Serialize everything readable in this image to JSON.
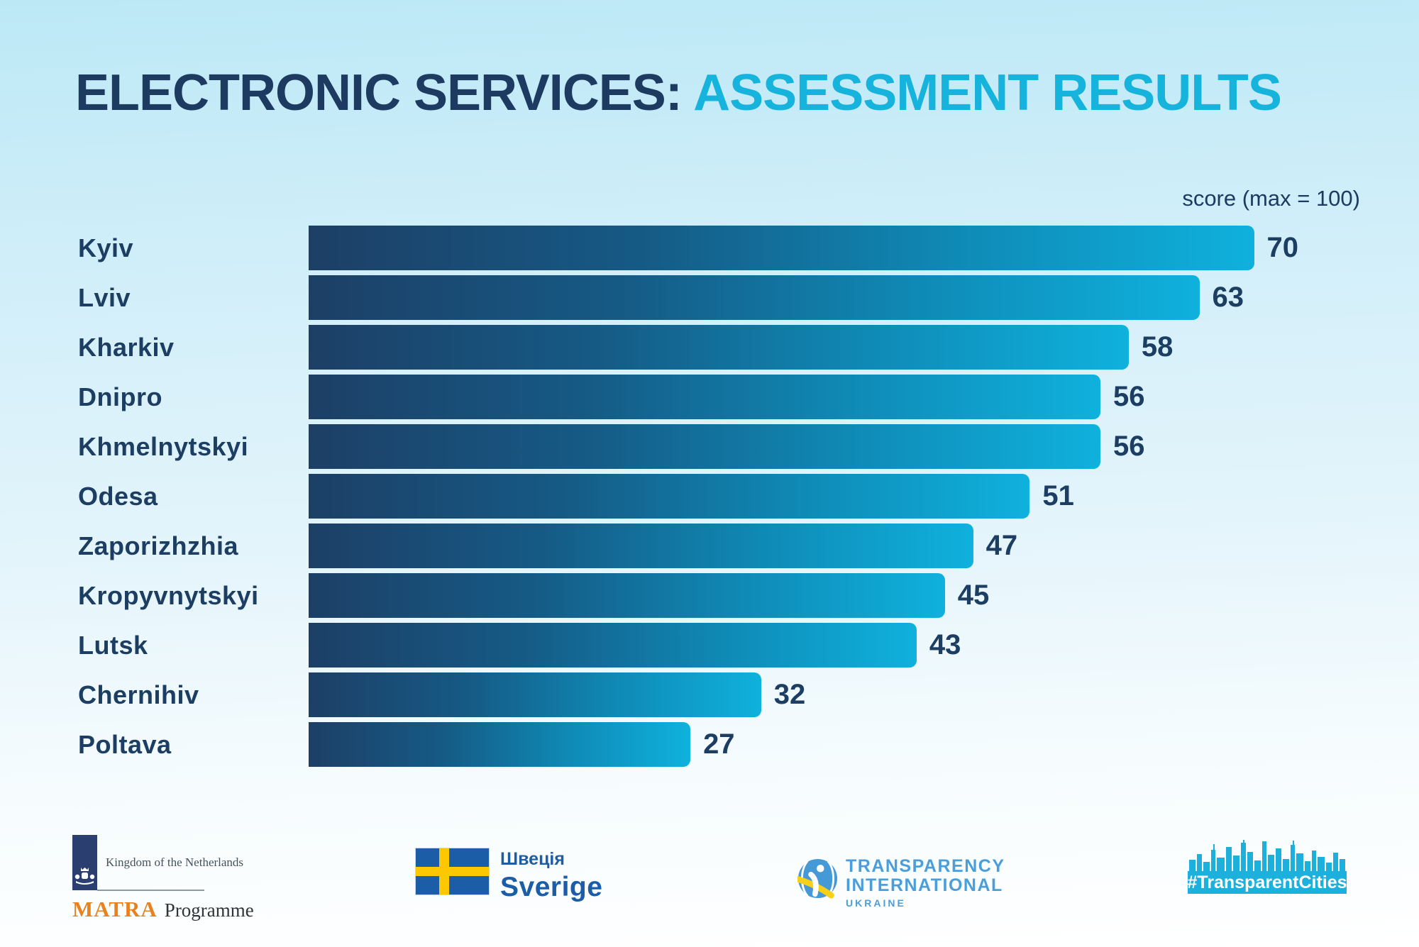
{
  "title": {
    "prefix": "ELECTRONIC SERVICES: ",
    "highlight": "ASSESSMENT RESULTS"
  },
  "axis_note": "score (max = 100)",
  "chart_data": {
    "type": "bar",
    "orientation": "horizontal",
    "title": "ELECTRONIC SERVICES: ASSESSMENT RESULTS",
    "value_axis_label": "score (max = 100)",
    "axis_max": 100,
    "categories": [
      "Kyiv",
      "Lviv",
      "Kharkiv",
      "Dnipro",
      "Khmelnytskyi",
      "Odesa",
      "Zaporizhzhia",
      "Kropyvnytskyi",
      "Lutsk",
      "Chernihiv",
      "Poltava"
    ],
    "values": [
      70,
      63,
      58,
      56,
      56,
      51,
      47,
      45,
      43,
      32,
      27
    ],
    "legend": [],
    "grid": false
  },
  "colors": {
    "title_navy": "#1d3a60",
    "title_cyan": "#16b3dc",
    "bar_gradient_start": "#1d3f66",
    "bar_gradient_end": "#0fb1dd",
    "label_navy": "#1d3e63",
    "background_top": "#bce8f6",
    "background_bottom": "#ffffff",
    "transparent_cities_cyan": "#1cb0dc",
    "sweden_blue": "#1c5da8",
    "sweden_yellow": "#fec800",
    "matra_orange": "#e8821e",
    "netherlands_blue": "#2a3e70",
    "ti_blue": "#4a9ed9"
  },
  "footer": {
    "netherlands": {
      "caption": "Kingdom of the Netherlands",
      "program_bold": "MATRA",
      "program_rest": "Programme"
    },
    "sweden": {
      "line1": "Швеція",
      "line2": "Sverige"
    },
    "transparency": {
      "line1": "TRANSPARENCY",
      "line2": "INTERNATIONAL",
      "line3": "UKRAINE"
    },
    "transparent_cities": {
      "label": "#TransparentCities"
    }
  }
}
